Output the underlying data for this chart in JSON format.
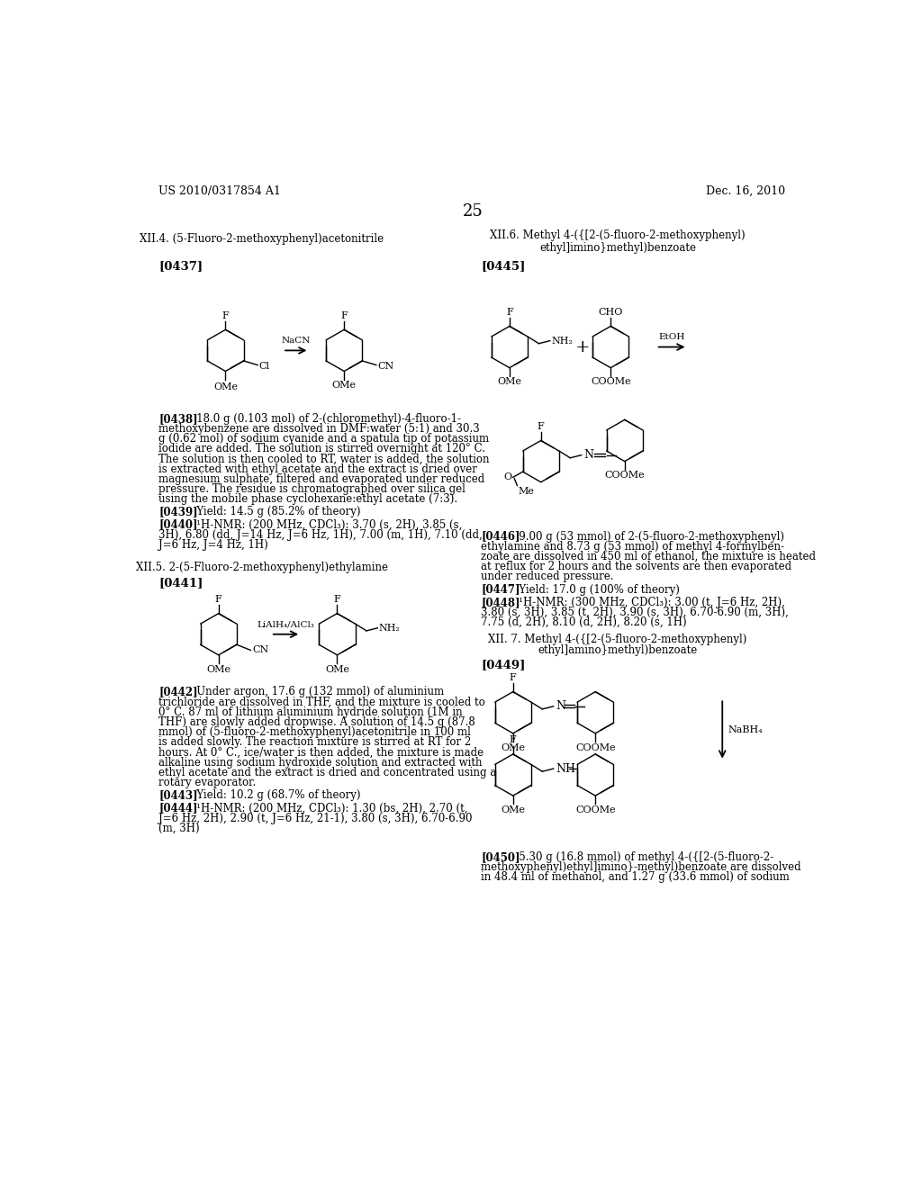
{
  "page_header_left": "US 2010/0317854 A1",
  "page_header_right": "Dec. 16, 2010",
  "page_number": "25",
  "background_color": "#ffffff",
  "text_color": "#000000",
  "title_left": "XII.4. (5-Fluoro-2-methoxyphenyl)acetonitrile",
  "title_right_l1": "XII.6. Methyl 4-({[2-(5-fluoro-2-methoxyphenyl)",
  "title_right_l2": "ethyl]imino}methyl)benzoate",
  "ref_0437": "[0437]",
  "ref_0441": "[0441]",
  "ref_0445": "[0445]",
  "ref_0449": "[0449]",
  "title_xii5": "XII.5. 2-(5-Fluoro-2-methoxyphenyl)ethylamine",
  "title_xii7_l1": "XII. 7. Methyl 4-({[2-(5-fluoro-2-methoxyphenyl)",
  "title_xii7_l2": "ethyl]amino}methyl)benzoate",
  "para_0438_bold": "[0438]",
  "para_0438_text": "   18.0 g (0.103 mol) of 2-(chloromethyl)-4-fluoro-1-\nmethoxybenzene are dissolved in DMF:water (5:1) and 30.3\ng (0.62 mol) of sodium cyanide and a spatula tip of potassium\niodide are added. The solution is stirred overnight at 120° C.\nThe solution is then cooled to RT, water is added, the solution\nis extracted with ethyl acetate and the extract is dried over\nmagnesium sulphate, filtered and evaporated under reduced\npressure. The residue is chromatographed over silica gel\nusing the mobile phase cyclohexane:ethyl acetate (7:3).",
  "para_0439": "[0439]   Yield: 14.5 g (85.2% of theory)",
  "para_0440_l1": "[0440]   ¹H-NMR: (200 MHz, CDCl₃): 3.70 (s, 2H), 3.85 (s,",
  "para_0440_l2": "3H), 6.80 (dd, J=14 Hz, J=6 Hz, 1H), 7.00 (m, 1H), 7.10 (dd,",
  "para_0440_l3": "J=6 Hz, J=4 Hz, 1H)",
  "para_0442_bold": "[0442]",
  "para_0442_text": "   Under argon, 17.6 g (132 mmol) of aluminium\ntrichloride are dissolved in THF, and the mixture is cooled to\n0° C. 87 ml of lithium aluminium hydride solution (1M in\nTHF) are slowly added dropwise. A solution of 14.5 g (87.8\nmmol) of (5-fluoro-2-methoxyphenyl)acetonitrile in 100 ml\nis added slowly. The reaction mixture is stirred at RT for 2\nhours. At 0° C., ice/water is then added, the mixture is made\nalkaline using sodium hydroxide solution and extracted with\nethyl acetate and the extract is dried and concentrated using a\nrotary evaporator.",
  "para_0443": "[0443]   Yield: 10.2 g (68.7% of theory)",
  "para_0444_l1": "[0444]   ¹H-NMR: (200 MHz, CDCl₃): 1.30 (bs, 2H), 2.70 (t,",
  "para_0444_l2": "J=6 Hz, 2H), 2.90 (t, J=6 Hz, 21-1), 3.80 (s, 3H), 6.70-6.90",
  "para_0444_l3": "(m, 3H)",
  "para_0446_bold": "[0446]",
  "para_0446_text": "   9.00 g (53 mmol) of 2-(5-fluoro-2-methoxyphenyl)\nethylamine and 8.73 g (53 mmol) of methyl 4-formylben-\nzoate are dissolved in 450 ml of ethanol, the mixture is heated\nat reflux for 2 hours and the solvents are then evaporated\nunder reduced pressure.",
  "para_0447": "[0447]   Yield: 17.0 g (100% of theory)",
  "para_0448_bold": "[0448]",
  "para_0448_text": "   ¹H-NMR: (300 MHz, CDCl₃): 3.00 (t, J=6 Hz, 2H),\n3.80 (s, 3H), 3.85 (t, 2H), 3.90 (s, 3H), 6.70-6.90 (m, 3H),\n7.75 (d, 2H), 8.10 (d, 2H), 8.20 (s, 1H)",
  "para_0450_bold": "[0450]",
  "para_0450_text": "   5.30 g (16.8 mmol) of methyl 4-({[2-(5-fluoro-2-\nmethoxyphenyl)ethyl]imino}-methyl)benzoate are dissolved\nin 48.4 ml of methanol, and 1.27 g (33.6 mmol) of sodium"
}
